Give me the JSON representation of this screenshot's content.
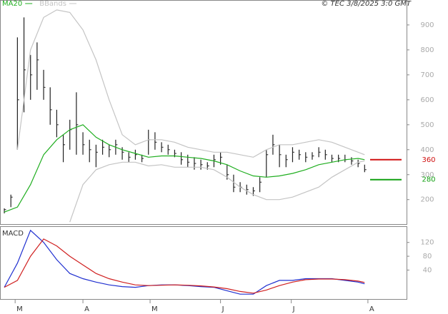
{
  "chart_data": [
    {
      "type": "ohlc",
      "title": "© TEC 3/8/2025 3:0 GMT",
      "xlim": [
        -1.1,
        122.8
      ],
      "ylim": [
        102,
        997
      ],
      "yticks": [
        200,
        300,
        400,
        500,
        600,
        700,
        800,
        900
      ],
      "grid": true,
      "bars": {
        "color": "#222",
        "x": [
          0,
          2,
          4,
          6,
          8,
          10,
          12,
          14,
          16,
          18,
          20,
          22,
          24,
          26,
          28,
          30,
          32,
          34,
          36,
          38,
          40,
          42,
          44,
          46,
          48,
          50,
          52,
          54,
          56,
          58,
          60,
          62,
          64,
          66,
          68,
          70,
          72,
          74,
          76,
          78,
          80,
          82,
          84,
          86,
          88,
          90,
          92,
          94,
          96,
          98,
          100,
          102,
          104,
          106,
          108,
          110
        ],
        "high": [
          165,
          220,
          850,
          930,
          780,
          830,
          720,
          650,
          560,
          460,
          520,
          630,
          470,
          440,
          420,
          440,
          420,
          440,
          410,
          390,
          400,
          380,
          480,
          470,
          430,
          420,
          400,
          390,
          380,
          370,
          360,
          350,
          380,
          390,
          340,
          300,
          270,
          260,
          250,
          290,
          400,
          460,
          420,
          380,
          410,
          400,
          390,
          390,
          410,
          400,
          380,
          380,
          380,
          370,
          360,
          340
        ],
        "low": [
          145,
          170,
          400,
          550,
          600,
          640,
          600,
          500,
          450,
          350,
          400,
          380,
          380,
          350,
          330,
          380,
          370,
          380,
          360,
          350,
          360,
          350,
          380,
          400,
          390,
          380,
          370,
          340,
          330,
          320,
          320,
          320,
          330,
          340,
          280,
          230,
          230,
          220,
          215,
          230,
          290,
          380,
          330,
          330,
          350,
          360,
          350,
          360,
          370,
          360,
          350,
          350,
          350,
          340,
          330,
          310
        ],
        "close": [
          160,
          210,
          600,
          720,
          700,
          760,
          650,
          560,
          500,
          420,
          480,
          500,
          420,
          400,
          390,
          410,
          400,
          420,
          390,
          370,
          380,
          365,
          440,
          430,
          410,
          400,
          385,
          360,
          350,
          345,
          340,
          335,
          360,
          370,
          300,
          250,
          250,
          240,
          235,
          270,
          380,
          420,
          380,
          360,
          390,
          380,
          370,
          375,
          390,
          380,
          365,
          365,
          360,
          355,
          345,
          320
        ]
      },
      "x": [
        0,
        4,
        8,
        12,
        16,
        20,
        24,
        28,
        32,
        36,
        40,
        44,
        48,
        52,
        56,
        60,
        64,
        68,
        72,
        76,
        80,
        84,
        88,
        92,
        96,
        100,
        104,
        108,
        110
      ],
      "series": [
        {
          "name": "MA20",
          "color": "#1fae1f",
          "values": [
            150,
            170,
            260,
            380,
            440,
            480,
            500,
            450,
            420,
            400,
            385,
            370,
            375,
            375,
            370,
            365,
            355,
            340,
            315,
            295,
            290,
            295,
            305,
            320,
            340,
            350,
            360,
            365,
            360
          ]
        },
        {
          "name": "BBands",
          "color": "#c4c4c4",
          "upper": [
            null,
            400,
            800,
            930,
            960,
            950,
            880,
            760,
            600,
            460,
            420,
            440,
            440,
            430,
            410,
            400,
            390,
            390,
            380,
            370,
            400,
            420,
            420,
            430,
            440,
            430,
            410,
            390,
            380
          ],
          "lower": [
            null,
            null,
            null,
            null,
            null,
            110,
            260,
            320,
            340,
            350,
            350,
            335,
            340,
            330,
            330,
            330,
            320,
            290,
            250,
            220,
            200,
            200,
            210,
            230,
            250,
            290,
            320,
            350,
            355
          ]
        }
      ],
      "levels": [
        360,
        280
      ],
      "level_colors": [
        "#d01010",
        "#10a010"
      ]
    },
    {
      "type": "macd",
      "title": "MACD",
      "xlim": [
        -1.1,
        122.8
      ],
      "ylim": [
        -44,
        165
      ],
      "yticks": [
        120,
        80,
        40
      ],
      "xticks": [
        {
          "value": 3.3,
          "label": "M"
        },
        {
          "value": 24,
          "label": "A"
        },
        {
          "value": 44.5,
          "label": "M"
        },
        {
          "value": 66,
          "label": "J"
        },
        {
          "value": 87.6,
          "label": "J"
        },
        {
          "value": 111,
          "label": "A"
        }
      ],
      "x": [
        0,
        4,
        8,
        12,
        16,
        20,
        24,
        28,
        32,
        36,
        40,
        44,
        48,
        52,
        56,
        60,
        64,
        68,
        72,
        76,
        80,
        84,
        88,
        92,
        96,
        100,
        104,
        108,
        110
      ],
      "series": [
        {
          "color": "#2030d0",
          "values": [
            -10,
            60,
            155,
            120,
            70,
            30,
            15,
            5,
            -3,
            -8,
            -10,
            -5,
            -3,
            -3,
            -5,
            -8,
            -10,
            -20,
            -30,
            -30,
            -5,
            10,
            10,
            15,
            15,
            15,
            10,
            5,
            0
          ]
        },
        {
          "color": "#d02020",
          "values": [
            -10,
            10,
            80,
            130,
            110,
            80,
            55,
            30,
            15,
            5,
            -3,
            -5,
            -4,
            -3,
            -4,
            -6,
            -9,
            -14,
            -22,
            -27,
            -18,
            -5,
            5,
            12,
            14,
            14,
            12,
            8,
            4
          ]
        }
      ]
    }
  ]
}
